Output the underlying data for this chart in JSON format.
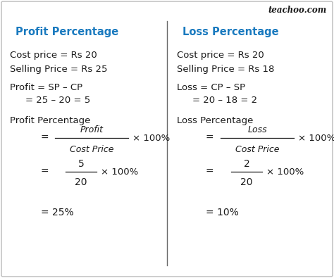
{
  "bg_color": "#ffffff",
  "border_color": "#bbbbbb",
  "divider_color": "#666666",
  "blue_color": "#1a7abf",
  "black_color": "#1a1a1a",
  "teachoo_color": "#1a1a1a",
  "teachoo_text": "teachoo.com",
  "left_title": "Profit Percentage",
  "right_title": "Loss Percentage"
}
